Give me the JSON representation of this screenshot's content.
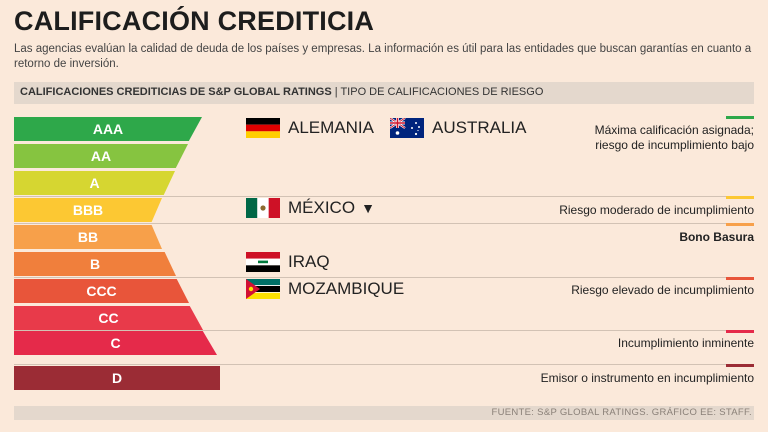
{
  "title": "CALIFICACIÓN CREDITICIA",
  "subtitle": "Las agencias evalúan la calidad de deuda de los países y empresas. La información es útil para las entidades que buscan garantías en cuanto a retorno de inversión.",
  "band": {
    "bold": "CALIFICACIONES CREDITICIAS DE S&P GLOBAL RATINGS",
    "rest": " | TIPO DE CALIFICACIONES DE RIESGO"
  },
  "ratings": [
    "AAA",
    "AA",
    "A",
    "BBB",
    "BB",
    "B",
    "CCC",
    "CC",
    "C",
    "D"
  ],
  "colors": {
    "AAA": "#2ea84a",
    "AA": "#86c440",
    "A": "#d6d631",
    "BBB": "#fcc833",
    "BB": "#f7a04a",
    "B": "#f07f3c",
    "CCC": "#e8553a",
    "CC": "#e83a4a",
    "C": "#e52a4a",
    "D": "#9b2c35"
  },
  "descriptions": {
    "max": "Máxima calificación asignada;",
    "max2": "riesgo de incumplimiento bajo",
    "moderate": "Riesgo moderado de incumplimiento",
    "junk": "Bono Basura",
    "high": "Riesgo elevado de incumplimiento",
    "imminent": "Incumplimiento inminente",
    "default": "Emisor o instrumento en incumplimiento"
  },
  "countries": {
    "germany": "ALEMANIA",
    "australia": "AUSTRALIA",
    "mexico": "MÉXICO",
    "mexico_arrow": "▼",
    "iraq": "IRAQ",
    "mozambique": "MOZAMBIQUE"
  },
  "footer": "FUENTE: S&P GLOBAL RATINGS. GRÁFICO EE: STAFF."
}
